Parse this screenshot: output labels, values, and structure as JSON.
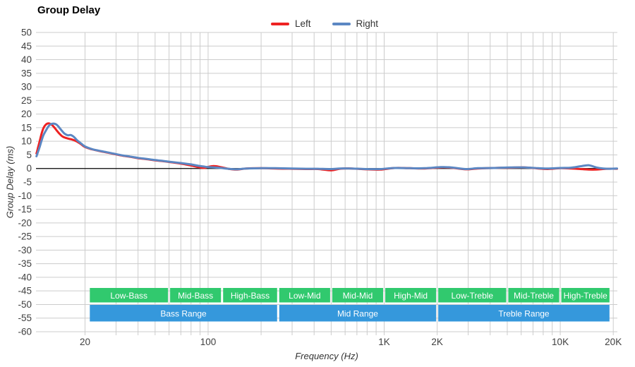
{
  "header": {
    "title": "Group Delay"
  },
  "chart_data": {
    "type": "line",
    "title": "Group Delay",
    "xlabel": "Frequency (Hz)",
    "ylabel": "Group Delay (ms)",
    "x_scale": "log",
    "x_range_hz": [
      10.53,
      21100
    ],
    "ylim": [
      -60,
      50
    ],
    "y_tick_step": 5,
    "grid": true,
    "legend_position": "top-center",
    "colors": {
      "grid": "#cccccc",
      "zero_line": "#000000",
      "tick_text": "#404040",
      "band_sub": "#31c96e",
      "band_range": "#3598dc",
      "band_text": "#ffffff"
    },
    "x_ticks": [
      {
        "value": 20,
        "label": "20"
      },
      {
        "value": 100,
        "label": "100"
      },
      {
        "value": 1000,
        "label": "1K"
      },
      {
        "value": 2000,
        "label": "2K"
      },
      {
        "value": 10000,
        "label": "10K"
      },
      {
        "value": 20000,
        "label": "20K"
      }
    ],
    "x_gridlines_hz": [
      20,
      30,
      40,
      50,
      60,
      70,
      80,
      90,
      100,
      200,
      300,
      400,
      500,
      600,
      700,
      800,
      900,
      1000,
      2000,
      3000,
      4000,
      5000,
      6000,
      7000,
      8000,
      9000,
      10000,
      20000
    ],
    "y_ticks": [
      50,
      45,
      40,
      35,
      30,
      25,
      20,
      15,
      10,
      5,
      0,
      -5,
      -10,
      -15,
      -20,
      -25,
      -30,
      -35,
      -40,
      -45,
      -50,
      -55,
      -60
    ],
    "series": [
      {
        "name": "Left",
        "color": "#ee2222",
        "points": [
          [
            10.6,
            5.5
          ],
          [
            10.8,
            7.5
          ],
          [
            11,
            9.5
          ],
          [
            11.3,
            12.5
          ],
          [
            11.6,
            14.8
          ],
          [
            12,
            16.2
          ],
          [
            12.4,
            16.6
          ],
          [
            12.8,
            16.3
          ],
          [
            13.3,
            15.3
          ],
          [
            13.8,
            14.0
          ],
          [
            14.3,
            12.8
          ],
          [
            14.8,
            11.9
          ],
          [
            15.3,
            11.4
          ],
          [
            16,
            11.0
          ],
          [
            17,
            10.6
          ],
          [
            18,
            9.9
          ],
          [
            19,
            8.9
          ],
          [
            20,
            7.9
          ],
          [
            22,
            7.0
          ],
          [
            25,
            6.2
          ],
          [
            28,
            5.6
          ],
          [
            32,
            4.8
          ],
          [
            36,
            4.3
          ],
          [
            40,
            3.8
          ],
          [
            45,
            3.4
          ],
          [
            50,
            3.0
          ],
          [
            55,
            2.7
          ],
          [
            60,
            2.4
          ],
          [
            70,
            1.8
          ],
          [
            80,
            1.1
          ],
          [
            88,
            0.5
          ],
          [
            95,
            0.2
          ],
          [
            100,
            0.6
          ],
          [
            108,
            0.9
          ],
          [
            118,
            0.5
          ],
          [
            130,
            -0.1
          ],
          [
            145,
            -0.4
          ],
          [
            165,
            0.0
          ],
          [
            200,
            0.1
          ],
          [
            240,
            0.0
          ],
          [
            300,
            -0.1
          ],
          [
            360,
            -0.2
          ],
          [
            420,
            -0.2
          ],
          [
            500,
            -0.7
          ],
          [
            560,
            -0.1
          ],
          [
            650,
            0.0
          ],
          [
            800,
            -0.3
          ],
          [
            950,
            -0.4
          ],
          [
            1150,
            0.2
          ],
          [
            1400,
            0.1
          ],
          [
            1700,
            0.0
          ],
          [
            2100,
            0.4
          ],
          [
            2400,
            0.3
          ],
          [
            2900,
            -0.3
          ],
          [
            3400,
            0.0
          ],
          [
            4200,
            0.2
          ],
          [
            5200,
            0.3
          ],
          [
            6300,
            0.4
          ],
          [
            7500,
            0.0
          ],
          [
            8500,
            -0.2
          ],
          [
            10000,
            0.1
          ],
          [
            11500,
            0.0
          ],
          [
            13000,
            -0.2
          ],
          [
            14500,
            -0.4
          ],
          [
            16000,
            -0.4
          ],
          [
            17500,
            -0.2
          ],
          [
            19000,
            -0.1
          ],
          [
            21000,
            -0.1
          ]
        ]
      },
      {
        "name": "Right",
        "color": "#5b87c3",
        "points": [
          [
            10.6,
            4.5
          ],
          [
            10.8,
            6.0
          ],
          [
            11,
            7.5
          ],
          [
            11.3,
            10.0
          ],
          [
            11.6,
            12.2
          ],
          [
            12,
            14.0
          ],
          [
            12.4,
            15.5
          ],
          [
            12.8,
            16.3
          ],
          [
            13.3,
            16.5
          ],
          [
            13.8,
            16.1
          ],
          [
            14.3,
            15.0
          ],
          [
            14.8,
            13.8
          ],
          [
            15.3,
            12.8
          ],
          [
            16,
            12.2
          ],
          [
            16.6,
            12.3
          ],
          [
            17.3,
            11.6
          ],
          [
            18,
            10.4
          ],
          [
            19,
            9.2
          ],
          [
            20,
            8.1
          ],
          [
            22,
            7.1
          ],
          [
            25,
            6.3
          ],
          [
            28,
            5.7
          ],
          [
            32,
            4.9
          ],
          [
            36,
            4.4
          ],
          [
            40,
            3.9
          ],
          [
            45,
            3.5
          ],
          [
            50,
            3.1
          ],
          [
            55,
            2.8
          ],
          [
            60,
            2.5
          ],
          [
            70,
            2.0
          ],
          [
            80,
            1.5
          ],
          [
            88,
            1.0
          ],
          [
            95,
            0.7
          ],
          [
            100,
            0.5
          ],
          [
            108,
            0.4
          ],
          [
            118,
            0.2
          ],
          [
            130,
            -0.1
          ],
          [
            145,
            -0.3
          ],
          [
            165,
            0.0
          ],
          [
            200,
            0.1
          ],
          [
            240,
            0.1
          ],
          [
            300,
            0.0
          ],
          [
            360,
            -0.1
          ],
          [
            420,
            -0.1
          ],
          [
            500,
            -0.2
          ],
          [
            560,
            0.0
          ],
          [
            650,
            0.0
          ],
          [
            800,
            -0.2
          ],
          [
            950,
            -0.2
          ],
          [
            1150,
            0.2
          ],
          [
            1400,
            0.1
          ],
          [
            1700,
            0.1
          ],
          [
            2100,
            0.5
          ],
          [
            2400,
            0.4
          ],
          [
            2900,
            -0.2
          ],
          [
            3400,
            0.1
          ],
          [
            4200,
            0.2
          ],
          [
            5200,
            0.4
          ],
          [
            6300,
            0.4
          ],
          [
            7500,
            0.1
          ],
          [
            8500,
            0.0
          ],
          [
            10000,
            0.2
          ],
          [
            11500,
            0.3
          ],
          [
            13000,
            0.8
          ],
          [
            14500,
            1.2
          ],
          [
            16000,
            0.4
          ],
          [
            17500,
            0.0
          ],
          [
            19000,
            -0.1
          ],
          [
            21000,
            0.0
          ]
        ]
      }
    ],
    "bands": {
      "sub": [
        {
          "label": "Low-Bass",
          "from": 21,
          "to": 60
        },
        {
          "label": "Mid-Bass",
          "from": 60,
          "to": 120
        },
        {
          "label": "High-Bass",
          "from": 120,
          "to": 250
        },
        {
          "label": "Low-Mid",
          "from": 250,
          "to": 500
        },
        {
          "label": "Mid-Mid",
          "from": 500,
          "to": 1000
        },
        {
          "label": "High-Mid",
          "from": 1000,
          "to": 2000
        },
        {
          "label": "Low-Treble",
          "from": 2000,
          "to": 5000
        },
        {
          "label": "Mid-Treble",
          "from": 5000,
          "to": 10000
        },
        {
          "label": "High-Treble",
          "from": 10000,
          "to": 19300
        }
      ],
      "ranges": [
        {
          "label": "Bass Range",
          "from": 21,
          "to": 250
        },
        {
          "label": "Mid Range",
          "from": 250,
          "to": 2000
        },
        {
          "label": "Treble Range",
          "from": 2000,
          "to": 19300
        }
      ]
    }
  }
}
